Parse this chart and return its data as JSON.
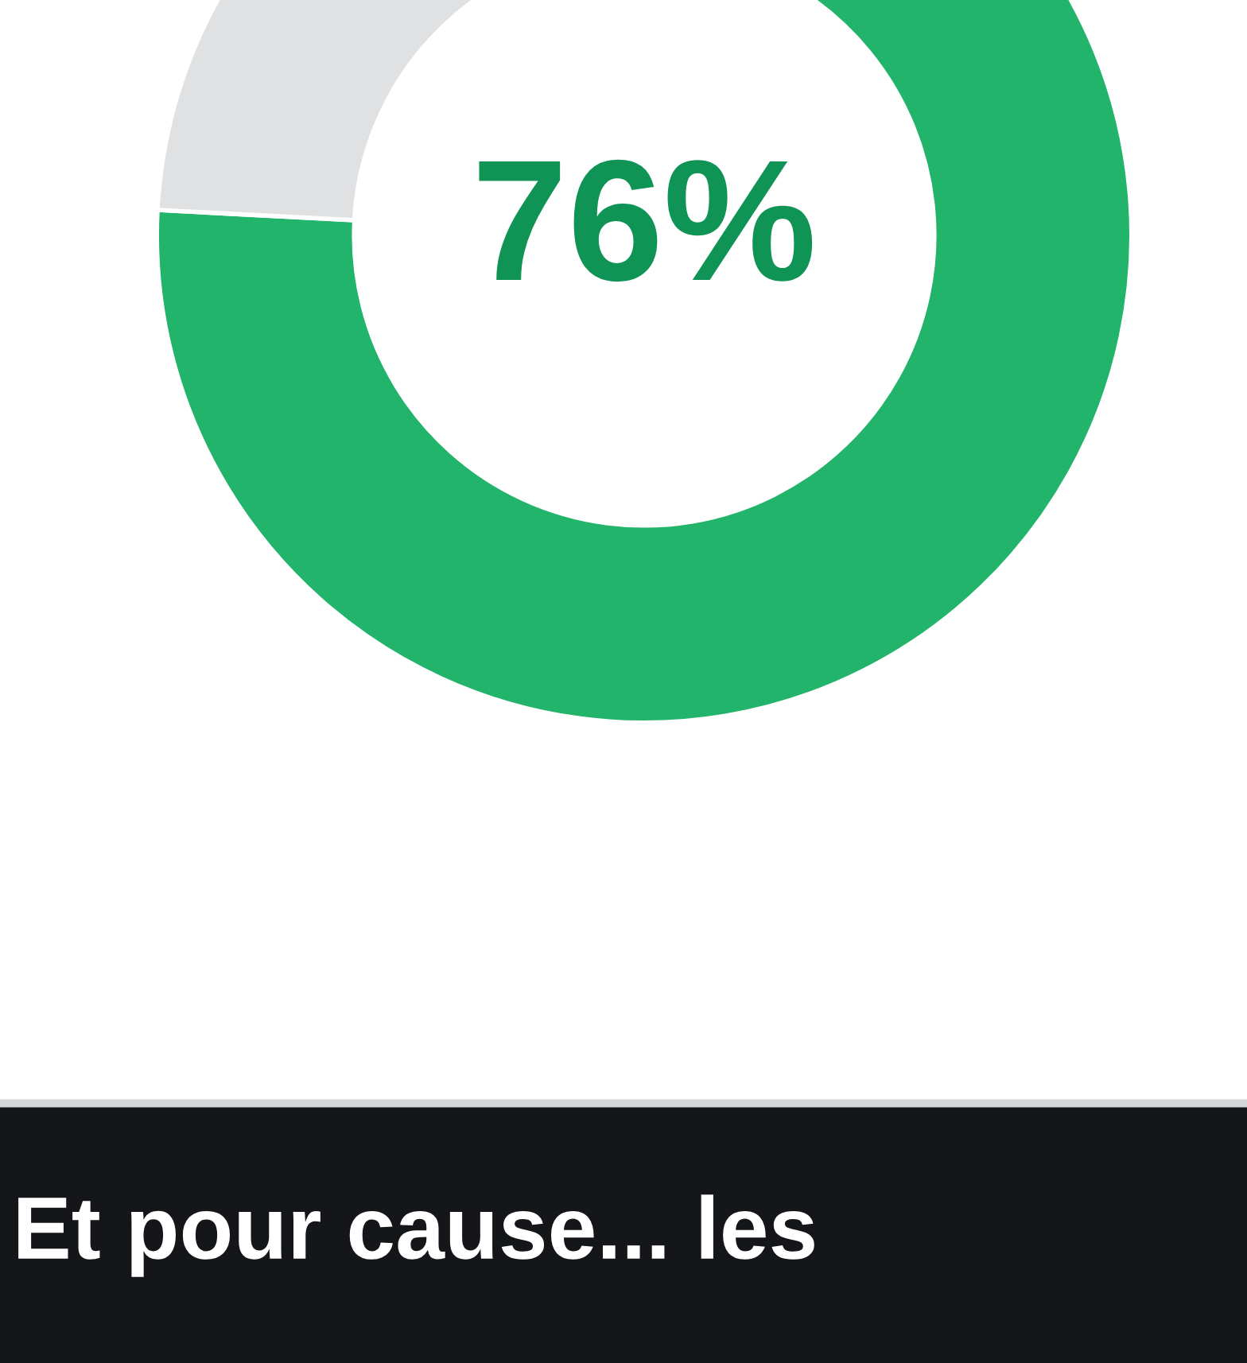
{
  "chart_data": {
    "type": "donut",
    "categories": [
      null,
      null
    ],
    "values": [
      76,
      24
    ],
    "value_labels": [
      "76%",
      null
    ],
    "colors": [
      "#23b46b",
      "#e0e1e3"
    ],
    "annotations": [
      "Et pour cause... les"
    ],
    "legend": false
  }
}
